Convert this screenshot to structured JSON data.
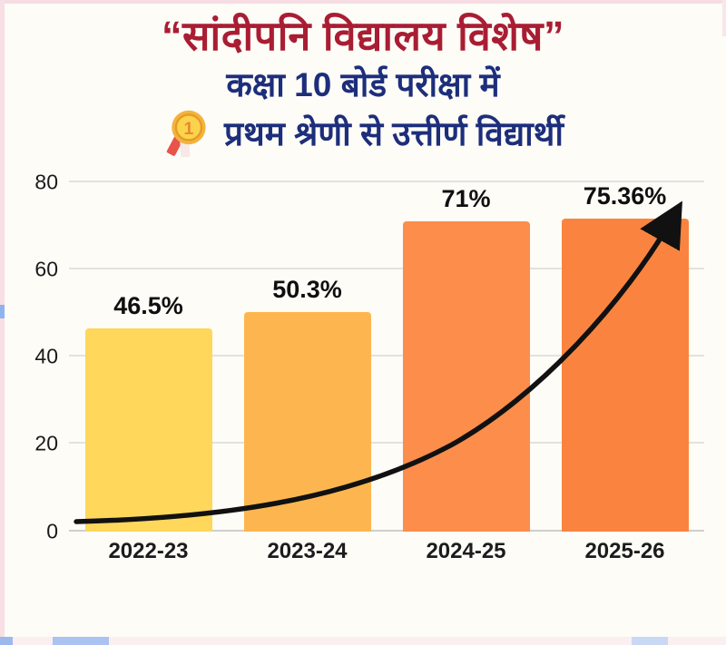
{
  "header": {
    "title": "“सांदीपनि विद्यालय विशेष”",
    "subtitle_line1": "कक्षा 10 बोर्ड परीक्षा में",
    "subtitle_line2": "प्रथम श्रेणी से उत्तीर्ण विद्यार्थी",
    "medal_icon": "gold-medal-first-place",
    "medal_number": "1"
  },
  "chart_data": {
    "type": "bar",
    "categories": [
      "2022-23",
      "2023-24",
      "2024-25",
      "2025-26"
    ],
    "values": [
      46.5,
      50.3,
      71,
      75.36
    ],
    "value_labels": [
      "46.5%",
      "50.3%",
      "71%",
      "75.36%"
    ],
    "bar_colors": [
      "#FED75B",
      "#FDB64F",
      "#FC8D4B",
      "#FA843F"
    ],
    "ylim": [
      0,
      80
    ],
    "yticks": [
      0,
      20,
      40,
      60,
      80
    ],
    "grid": true,
    "legend": false,
    "annotation": "black exponential upward trend arrow from baseline at 2022-23 to top of 2025-26 bar",
    "title": "",
    "xlabel": "",
    "ylabel": ""
  },
  "colors": {
    "title_text": "#A91D33",
    "subtitle_text": "#1D2E7B",
    "value_label_text": "#0F0F0F",
    "axis_text": "#1A1A1A",
    "gridline": "#E2E2E0",
    "arrow": "#111111",
    "background": "#FDFCF7",
    "frame_pink": "#F6DDE3",
    "frame_blue": "#8FB3EF"
  }
}
